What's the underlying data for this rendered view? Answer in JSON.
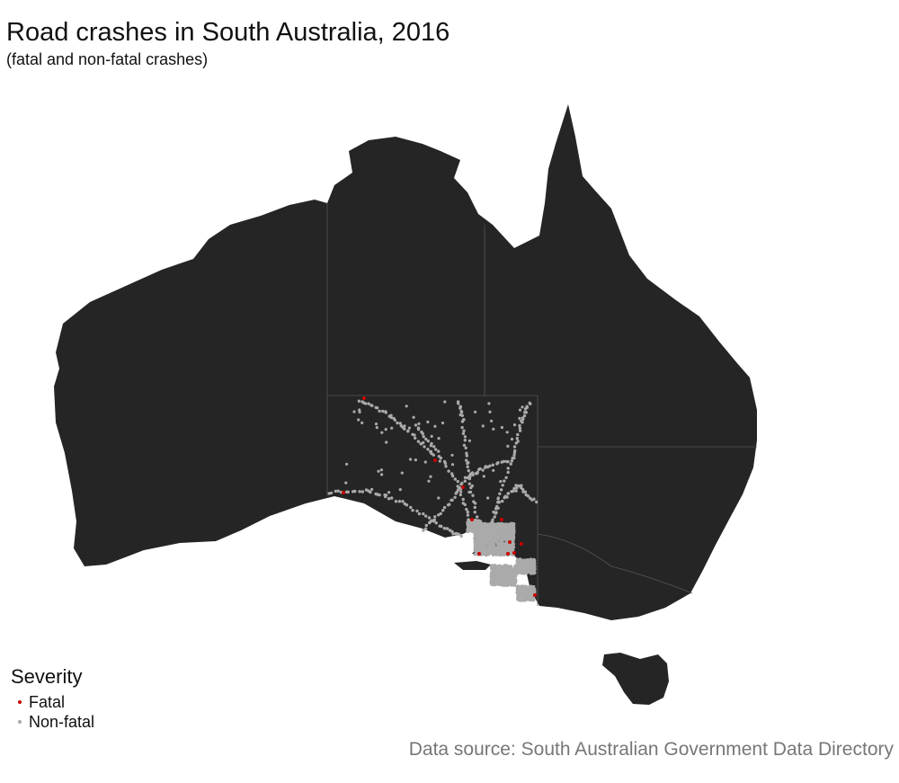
{
  "title": "Road crashes in South Australia, 2016",
  "subtitle": "(fatal and non-fatal crashes)",
  "legend": {
    "title": "Severity",
    "items": [
      {
        "label": "Fatal",
        "color": "#cc0000"
      },
      {
        "label": "Non-fatal",
        "color": "#aaaaaa"
      }
    ]
  },
  "caption": "Data source: South Australian Government Data Directory",
  "colors": {
    "land": "#252525",
    "border": "#555555",
    "fatal": "#cc0000",
    "nonfatal": "#aaaaaa"
  }
}
